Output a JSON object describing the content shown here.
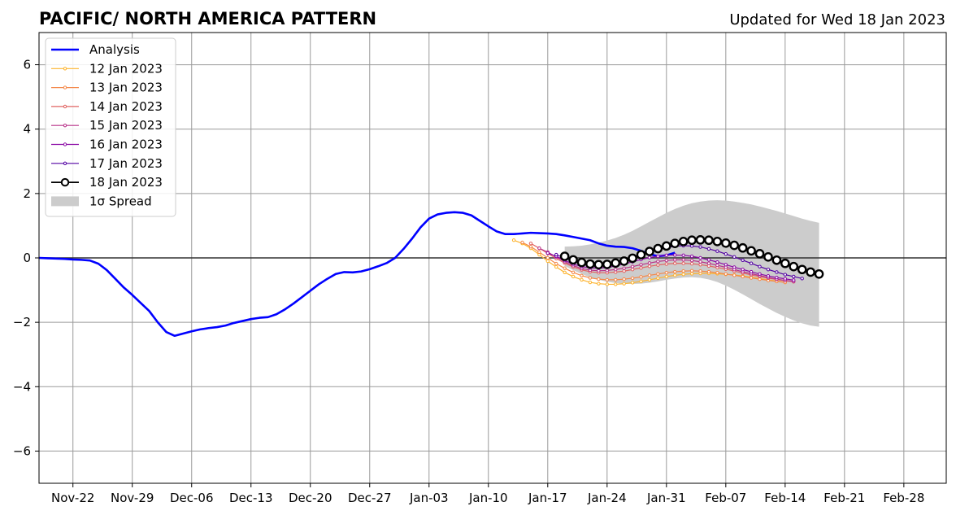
{
  "header": {
    "title": "PACIFIC/ NORTH AMERICA PATTERN",
    "updated": "Updated for Wed 18 Jan 2023"
  },
  "chart_data": {
    "type": "line",
    "title": "PACIFIC/ NORTH AMERICA PATTERN",
    "subtitle": "Updated for Wed 18 Jan 2023",
    "xlabel": "",
    "ylabel": "",
    "x_range": [
      "2022-11-18",
      "2023-03-05"
    ],
    "ylim": [
      -7,
      7
    ],
    "x_ticks": [
      {
        "date": "2022-11-22",
        "label": "Nov-22"
      },
      {
        "date": "2022-11-29",
        "label": "Nov-29"
      },
      {
        "date": "2022-12-06",
        "label": "Dec-06"
      },
      {
        "date": "2022-12-13",
        "label": "Dec-13"
      },
      {
        "date": "2022-12-20",
        "label": "Dec-20"
      },
      {
        "date": "2022-12-27",
        "label": "Dec-27"
      },
      {
        "date": "2023-01-03",
        "label": "Jan-03"
      },
      {
        "date": "2023-01-10",
        "label": "Jan-10"
      },
      {
        "date": "2023-01-17",
        "label": "Jan-17"
      },
      {
        "date": "2023-01-24",
        "label": "Jan-24"
      },
      {
        "date": "2023-01-31",
        "label": "Jan-31"
      },
      {
        "date": "2023-02-07",
        "label": "Feb-07"
      },
      {
        "date": "2023-02-14",
        "label": "Feb-14"
      },
      {
        "date": "2023-02-21",
        "label": "Feb-21"
      },
      {
        "date": "2023-02-28",
        "label": "Feb-28"
      }
    ],
    "y_ticks": [
      {
        "value": -6,
        "label": "−6"
      },
      {
        "value": -4,
        "label": "−4"
      },
      {
        "value": -2,
        "label": "−2"
      },
      {
        "value": 0,
        "label": "0"
      },
      {
        "value": 2,
        "label": "2"
      },
      {
        "value": 4,
        "label": "4"
      },
      {
        "value": 6,
        "label": "6"
      }
    ],
    "grid": true,
    "zero_line": true,
    "legend_position": "top-left",
    "analysis": {
      "name": "Analysis",
      "color": "#0000ff",
      "start_date": "2022-11-18",
      "values": [
        0.0,
        -0.01,
        -0.02,
        -0.03,
        -0.05,
        -0.06,
        -0.08,
        -0.18,
        -0.38,
        -0.65,
        -0.92,
        -1.15,
        -1.4,
        -1.65,
        -2.0,
        -2.3,
        -2.42,
        -2.35,
        -2.28,
        -2.22,
        -2.18,
        -2.15,
        -2.1,
        -2.02,
        -1.96,
        -1.9,
        -1.86,
        -1.84,
        -1.75,
        -1.6,
        -1.42,
        -1.22,
        -1.02,
        -0.82,
        -0.65,
        -0.5,
        -0.44,
        -0.45,
        -0.42,
        -0.35,
        -0.26,
        -0.16,
        0.0,
        0.28,
        0.6,
        0.95,
        1.22,
        1.35,
        1.4,
        1.42,
        1.4,
        1.32,
        1.15,
        0.98,
        0.82,
        0.74,
        0.74,
        0.76,
        0.78,
        0.77,
        0.76,
        0.74,
        0.7,
        0.65,
        0.6,
        0.55,
        0.45,
        0.38,
        0.35,
        0.34,
        0.3,
        0.22,
        0.12,
        0.05,
        0.08,
        0.16
      ]
    },
    "forecasts": [
      {
        "name": "12 Jan 2023",
        "color": "#fdb42f",
        "start_date": "2023-01-13",
        "values": [
          0.55,
          0.45,
          0.3,
          0.1,
          -0.1,
          -0.28,
          -0.45,
          -0.58,
          -0.68,
          -0.76,
          -0.8,
          -0.82,
          -0.82,
          -0.8,
          -0.77,
          -0.73,
          -0.68,
          -0.63,
          -0.58,
          -0.54,
          -0.51,
          -0.49,
          -0.48,
          -0.48,
          -0.49,
          -0.51,
          -0.53,
          -0.56,
          -0.6,
          -0.64,
          -0.68,
          -0.72,
          -0.76
        ]
      },
      {
        "name": "13 Jan 2023",
        "color": "#f48849",
        "start_date": "2023-01-14",
        "values": [
          0.48,
          0.35,
          0.18,
          0.0,
          -0.18,
          -0.32,
          -0.45,
          -0.55,
          -0.62,
          -0.66,
          -0.68,
          -0.68,
          -0.66,
          -0.63,
          -0.59,
          -0.54,
          -0.5,
          -0.46,
          -0.43,
          -0.41,
          -0.4,
          -0.41,
          -0.43,
          -0.46,
          -0.5,
          -0.54,
          -0.58,
          -0.62,
          -0.66,
          -0.7,
          -0.73,
          -0.76
        ]
      },
      {
        "name": "14 Jan 2023",
        "color": "#e16462",
        "start_date": "2023-01-15",
        "values": [
          0.45,
          0.3,
          0.14,
          -0.02,
          -0.16,
          -0.28,
          -0.37,
          -0.43,
          -0.46,
          -0.46,
          -0.44,
          -0.41,
          -0.36,
          -0.31,
          -0.26,
          -0.22,
          -0.19,
          -0.17,
          -0.17,
          -0.18,
          -0.21,
          -0.25,
          -0.3,
          -0.35,
          -0.41,
          -0.47,
          -0.53,
          -0.58,
          -0.63,
          -0.67,
          -0.71,
          -0.74
        ]
      },
      {
        "name": "15 Jan 2023",
        "color": "#b83289",
        "start_date": "2023-01-16",
        "values": [
          0.3,
          0.18,
          0.03,
          -0.12,
          -0.24,
          -0.33,
          -0.38,
          -0.4,
          -0.39,
          -0.36,
          -0.32,
          -0.27,
          -0.21,
          -0.16,
          -0.11,
          -0.08,
          -0.06,
          -0.06,
          -0.08,
          -0.12,
          -0.17,
          -0.23,
          -0.29,
          -0.36,
          -0.43,
          -0.49,
          -0.55,
          -0.61,
          -0.66,
          -0.7,
          -0.73
        ]
      },
      {
        "name": "16 Jan 2023",
        "color": "#8b0aa5",
        "start_date": "2023-01-17",
        "values": [
          0.15,
          0.05,
          -0.08,
          -0.19,
          -0.27,
          -0.31,
          -0.32,
          -0.3,
          -0.25,
          -0.19,
          -0.12,
          -0.05,
          0.01,
          0.05,
          0.08,
          0.09,
          0.08,
          0.05,
          0.0,
          -0.06,
          -0.13,
          -0.21,
          -0.29,
          -0.36,
          -0.43,
          -0.5,
          -0.56,
          -0.61,
          -0.65,
          -0.69
        ]
      },
      {
        "name": "17 Jan 2023",
        "color": "#5302a3",
        "start_date": "2023-01-18",
        "values": [
          0.1,
          0.0,
          -0.1,
          -0.17,
          -0.21,
          -0.22,
          -0.2,
          -0.15,
          -0.08,
          0.0,
          0.09,
          0.18,
          0.26,
          0.32,
          0.36,
          0.38,
          0.37,
          0.34,
          0.28,
          0.21,
          0.12,
          0.03,
          -0.07,
          -0.17,
          -0.27,
          -0.36,
          -0.44,
          -0.52,
          -0.58,
          -0.64
        ]
      },
      {
        "name": "18 Jan 2023",
        "color": "#000000",
        "start_date": "2023-01-19",
        "values": [
          0.05,
          -0.06,
          -0.14,
          -0.19,
          -0.21,
          -0.2,
          -0.16,
          -0.1,
          -0.01,
          0.1,
          0.2,
          0.29,
          0.37,
          0.45,
          0.51,
          0.55,
          0.56,
          0.55,
          0.51,
          0.46,
          0.39,
          0.31,
          0.22,
          0.13,
          0.03,
          -0.07,
          -0.17,
          -0.27,
          -0.36,
          -0.44,
          -0.5
        ]
      }
    ],
    "spread": {
      "name": "1σ Spread",
      "color": "#cccccc",
      "start_date": "2023-01-19",
      "upper": [
        0.35,
        0.36,
        0.38,
        0.42,
        0.47,
        0.54,
        0.62,
        0.72,
        0.84,
        0.98,
        1.12,
        1.26,
        1.4,
        1.52,
        1.62,
        1.7,
        1.75,
        1.78,
        1.79,
        1.78,
        1.75,
        1.71,
        1.66,
        1.6,
        1.53,
        1.46,
        1.38,
        1.3,
        1.22,
        1.15,
        1.09
      ],
      "lower": [
        -0.25,
        -0.38,
        -0.5,
        -0.6,
        -0.68,
        -0.74,
        -0.78,
        -0.8,
        -0.81,
        -0.8,
        -0.77,
        -0.73,
        -0.68,
        -0.64,
        -0.61,
        -0.6,
        -0.62,
        -0.67,
        -0.75,
        -0.86,
        -0.99,
        -1.13,
        -1.28,
        -1.43,
        -1.57,
        -1.71,
        -1.83,
        -1.94,
        -2.03,
        -2.1,
        -2.14
      ]
    }
  }
}
